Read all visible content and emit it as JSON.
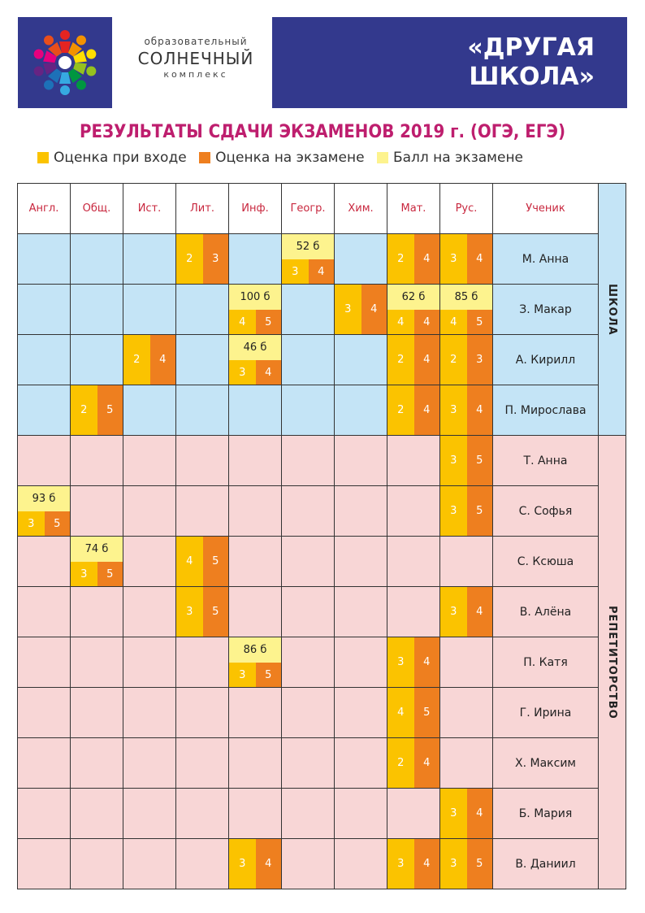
{
  "header": {
    "org_line1": "образовательный",
    "org_line2": "СОЛНЕЧНЫЙ",
    "org_line3": "комплекс",
    "brand_line1": "«ДРУГАЯ",
    "brand_line2": "ШКОЛА»"
  },
  "title": "РЕЗУЛЬТАТЫ СДАЧИ ЭКЗАМЕНОВ 2019 г. (ОГЭ, ЕГЭ)",
  "legend": [
    {
      "label": "Оценка при входе",
      "color": "#fbc300"
    },
    {
      "label": "Оценка на экзамене",
      "color": "#ee7f1f"
    },
    {
      "label": "Балл на экзамене",
      "color": "#fdf38e"
    }
  ],
  "columns": [
    "Англ.",
    "Общ.",
    "Ист.",
    "Лит.",
    "Инф.",
    "Геогр.",
    "Хим.",
    "Мат.",
    "Рус."
  ],
  "student_header": "Ученик",
  "colors": {
    "school_bg": "#c4e4f6",
    "tutor_bg": "#f8d6d6",
    "brand_bg": "#33398d",
    "title": "#be1e6e"
  },
  "groups": [
    {
      "label": "ШКОЛА",
      "rows": [
        0,
        3
      ]
    },
    {
      "label": "РЕПЕТИТОРСТВО",
      "rows": [
        4,
        12
      ]
    }
  ],
  "students": [
    {
      "name": "М. Анна",
      "group": "school",
      "results": [
        {
          "col": 3,
          "entry": "2",
          "exam": "3"
        },
        {
          "col": 5,
          "score": "52 б",
          "entry": "3",
          "exam": "4"
        },
        {
          "col": 7,
          "entry": "2",
          "exam": "4"
        },
        {
          "col": 8,
          "entry": "3",
          "exam": "4"
        }
      ]
    },
    {
      "name": "З. Макар",
      "group": "school",
      "results": [
        {
          "col": 4,
          "score": "100 б",
          "entry": "4",
          "exam": "5"
        },
        {
          "col": 6,
          "entry": "3",
          "exam": "4"
        },
        {
          "col": 7,
          "score": "62 б",
          "entry": "4",
          "exam": "4"
        },
        {
          "col": 8,
          "score": "85 б",
          "entry": "4",
          "exam": "5"
        }
      ]
    },
    {
      "name": "А. Кирилл",
      "group": "school",
      "results": [
        {
          "col": 2,
          "entry": "2",
          "exam": "4"
        },
        {
          "col": 4,
          "score": "46 б",
          "entry": "3",
          "exam": "4"
        },
        {
          "col": 7,
          "entry": "2",
          "exam": "4"
        },
        {
          "col": 8,
          "entry": "2",
          "exam": "3"
        }
      ]
    },
    {
      "name": "П. Мирослава",
      "group": "school",
      "results": [
        {
          "col": 1,
          "entry": "2",
          "exam": "5"
        },
        {
          "col": 7,
          "entry": "2",
          "exam": "4"
        },
        {
          "col": 8,
          "entry": "3",
          "exam": "4"
        }
      ]
    },
    {
      "name": "Т. Анна",
      "group": "tutor",
      "results": [
        {
          "col": 8,
          "entry": "3",
          "exam": "5"
        }
      ]
    },
    {
      "name": "С. Софья",
      "group": "tutor",
      "results": [
        {
          "col": 0,
          "score": "93 б",
          "entry": "3",
          "exam": "5"
        },
        {
          "col": 8,
          "entry": "3",
          "exam": "5"
        }
      ]
    },
    {
      "name": "С. Ксюша",
      "group": "tutor",
      "results": [
        {
          "col": 1,
          "score": "74 б",
          "entry": "3",
          "exam": "5"
        },
        {
          "col": 3,
          "entry": "4",
          "exam": "5"
        }
      ]
    },
    {
      "name": "В. Алёна",
      "group": "tutor",
      "results": [
        {
          "col": 3,
          "entry": "3",
          "exam": "5"
        },
        {
          "col": 8,
          "entry": "3",
          "exam": "4"
        }
      ]
    },
    {
      "name": "П. Катя",
      "group": "tutor",
      "results": [
        {
          "col": 4,
          "score": "86 б",
          "entry": "3",
          "exam": "5"
        },
        {
          "col": 7,
          "entry": "3",
          "exam": "4"
        }
      ]
    },
    {
      "name": "Г. Ирина",
      "group": "tutor",
      "results": [
        {
          "col": 7,
          "entry": "4",
          "exam": "5"
        }
      ]
    },
    {
      "name": "Х. Максим",
      "group": "tutor",
      "results": [
        {
          "col": 7,
          "entry": "2",
          "exam": "4"
        }
      ]
    },
    {
      "name": "Б. Мария",
      "group": "tutor",
      "results": [
        {
          "col": 8,
          "entry": "3",
          "exam": "4"
        }
      ]
    },
    {
      "name": "В. Даниил",
      "group": "tutor",
      "results": [
        {
          "col": 4,
          "entry": "3",
          "exam": "4"
        },
        {
          "col": 7,
          "entry": "3",
          "exam": "4"
        },
        {
          "col": 8,
          "entry": "3",
          "exam": "5"
        }
      ]
    }
  ]
}
